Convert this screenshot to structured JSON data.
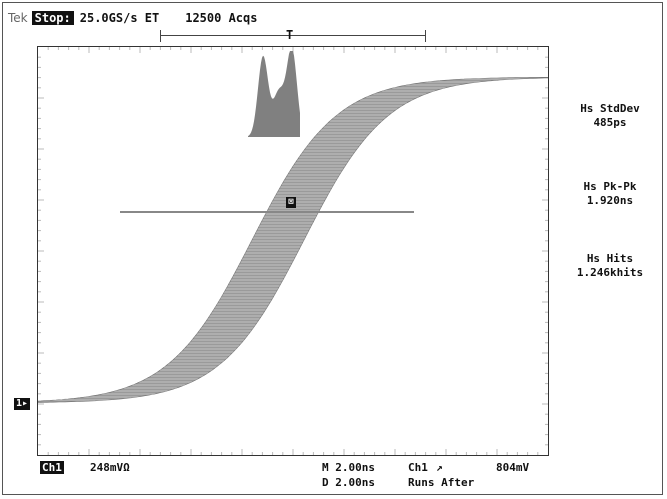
{
  "header": {
    "brand": "Tek",
    "state": "Stop:",
    "sample_rate": "25.0GS/s ET",
    "acquisitions": "12500 Acqs"
  },
  "timebar": {
    "trigger_marker": "T"
  },
  "markers": {
    "channel_marker": "1▸",
    "center_marker": "⊠"
  },
  "measurements": [
    {
      "label": "Hs StdDev",
      "value": "485ps"
    },
    {
      "label": "Hs Pk-Pk",
      "value": "1.920ns"
    },
    {
      "label": "Hs Hits",
      "value": "1.246khits"
    }
  ],
  "footer": {
    "channel_tag": "Ch1",
    "volts_per_div": "248mVΩ",
    "main_timebase": "M 2.00ns",
    "delay_timebase": "D 2.00ns",
    "trigger_source": "Ch1",
    "trigger_slope": "↗",
    "trigger_level": "804mV",
    "run_mode": "Runs After"
  },
  "colors": {
    "trace": "#9a9a9a",
    "trace_dark": "#6e6e6e",
    "histogram": "#808080",
    "grid": "#bbbbbb"
  }
}
